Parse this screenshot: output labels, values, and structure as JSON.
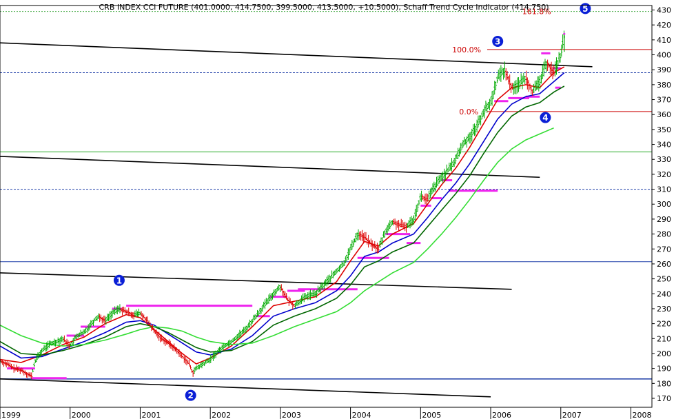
{
  "chart_data": {
    "type": "line",
    "title": "CRB INDEX CCI FUTURE (401.0000, 414.7500, 399.5000, 413.5000, +10.5000), Schaff Trend Cycle Indicator (414.750)",
    "x_tick_labels": [
      "1999",
      "2000",
      "2001",
      "2002",
      "2003",
      "2004",
      "2005",
      "2006",
      "2007",
      "2008"
    ],
    "y_tick_labels": [
      "170",
      "180",
      "190",
      "200",
      "210",
      "220",
      "230",
      "240",
      "250",
      "260",
      "270",
      "280",
      "290",
      "300",
      "310",
      "320",
      "330",
      "340",
      "350",
      "360",
      "370",
      "380",
      "390",
      "400",
      "410",
      "420",
      "430"
    ],
    "ylim": [
      164,
      433
    ],
    "xlim": [
      1999.0,
      2008.3
    ],
    "fib_levels": [
      {
        "label": "161.8%",
        "value": 429
      },
      {
        "label": "100.0%",
        "value": 403.5
      },
      {
        "label": "0.0%",
        "value": 362
      }
    ],
    "markers": [
      "1",
      "2",
      "3",
      "4",
      "5"
    ],
    "series": [
      {
        "type": "ohlc",
        "color": "#00aa00",
        "points": [
          [
            1999.0,
            195
          ],
          [
            1999.1,
            193
          ],
          [
            1999.2,
            190
          ],
          [
            1999.3,
            189
          ],
          [
            1999.4,
            186
          ],
          [
            1999.45,
            185
          ],
          [
            1999.5,
            195
          ],
          [
            1999.6,
            202
          ],
          [
            1999.7,
            206
          ],
          [
            1999.8,
            208
          ],
          [
            1999.9,
            210
          ],
          [
            2000.0,
            205
          ],
          [
            2000.1,
            212
          ],
          [
            2000.2,
            214
          ],
          [
            2000.3,
            220
          ],
          [
            2000.4,
            225
          ],
          [
            2000.5,
            222
          ],
          [
            2000.6,
            227
          ],
          [
            2000.7,
            230
          ],
          [
            2000.8,
            228
          ],
          [
            2000.9,
            226
          ],
          [
            2001.0,
            227
          ],
          [
            2001.1,
            222
          ],
          [
            2001.2,
            215
          ],
          [
            2001.3,
            210
          ],
          [
            2001.4,
            207
          ],
          [
            2001.5,
            203
          ],
          [
            2001.6,
            198
          ],
          [
            2001.7,
            193
          ],
          [
            2001.75,
            187
          ],
          [
            2001.8,
            190
          ],
          [
            2001.9,
            193
          ],
          [
            2002.0,
            196
          ],
          [
            2002.1,
            201
          ],
          [
            2002.2,
            205
          ],
          [
            2002.3,
            208
          ],
          [
            2002.4,
            212
          ],
          [
            2002.5,
            216
          ],
          [
            2002.6,
            222
          ],
          [
            2002.7,
            228
          ],
          [
            2002.8,
            234
          ],
          [
            2002.9,
            240
          ],
          [
            2003.0,
            245
          ],
          [
            2003.1,
            236
          ],
          [
            2003.2,
            232
          ],
          [
            2003.3,
            236
          ],
          [
            2003.4,
            239
          ],
          [
            2003.5,
            240
          ],
          [
            2003.6,
            245
          ],
          [
            2003.7,
            250
          ],
          [
            2003.8,
            255
          ],
          [
            2003.9,
            260
          ],
          [
            2004.0,
            270
          ],
          [
            2004.1,
            280
          ],
          [
            2004.2,
            278
          ],
          [
            2004.3,
            273
          ],
          [
            2004.4,
            270
          ],
          [
            2004.5,
            282
          ],
          [
            2004.6,
            288
          ],
          [
            2004.7,
            286
          ],
          [
            2004.8,
            285
          ],
          [
            2004.9,
            290
          ],
          [
            2005.0,
            305
          ],
          [
            2005.1,
            303
          ],
          [
            2005.2,
            312
          ],
          [
            2005.3,
            318
          ],
          [
            2005.4,
            323
          ],
          [
            2005.5,
            330
          ],
          [
            2005.6,
            340
          ],
          [
            2005.7,
            345
          ],
          [
            2005.8,
            352
          ],
          [
            2005.9,
            362
          ],
          [
            2006.0,
            368
          ],
          [
            2006.1,
            385
          ],
          [
            2006.2,
            390
          ],
          [
            2006.3,
            378
          ],
          [
            2006.4,
            380
          ],
          [
            2006.5,
            385
          ],
          [
            2006.6,
            375
          ],
          [
            2006.7,
            382
          ],
          [
            2006.8,
            395
          ],
          [
            2006.9,
            388
          ],
          [
            2007.0,
            400
          ],
          [
            2007.05,
            414
          ]
        ]
      },
      {
        "type": "line",
        "color": "#dd0000",
        "points": [
          [
            1999.0,
            196
          ],
          [
            1999.3,
            194
          ],
          [
            1999.6,
            199
          ],
          [
            1999.9,
            206
          ],
          [
            2000.2,
            211
          ],
          [
            2000.5,
            220
          ],
          [
            2000.8,
            226
          ],
          [
            2001.0,
            224
          ],
          [
            2001.2,
            216
          ],
          [
            2001.4,
            208
          ],
          [
            2001.6,
            200
          ],
          [
            2001.8,
            193
          ],
          [
            2002.0,
            197
          ],
          [
            2002.3,
            205
          ],
          [
            2002.6,
            218
          ],
          [
            2002.9,
            232
          ],
          [
            2003.2,
            235
          ],
          [
            2003.5,
            238
          ],
          [
            2003.8,
            248
          ],
          [
            2004.0,
            262
          ],
          [
            2004.2,
            275
          ],
          [
            2004.4,
            272
          ],
          [
            2004.6,
            280
          ],
          [
            2004.9,
            287
          ],
          [
            2005.1,
            300
          ],
          [
            2005.3,
            313
          ],
          [
            2005.5,
            324
          ],
          [
            2005.7,
            338
          ],
          [
            2005.9,
            354
          ],
          [
            2006.1,
            370
          ],
          [
            2006.3,
            378
          ],
          [
            2006.5,
            380
          ],
          [
            2006.7,
            378
          ],
          [
            2006.9,
            388
          ],
          [
            2007.05,
            392
          ]
        ]
      },
      {
        "type": "line",
        "color": "#0000cc",
        "points": [
          [
            1999.0,
            205
          ],
          [
            1999.3,
            197
          ],
          [
            1999.6,
            198
          ],
          [
            1999.9,
            203
          ],
          [
            2000.2,
            208
          ],
          [
            2000.5,
            214
          ],
          [
            2000.8,
            221
          ],
          [
            2001.0,
            222
          ],
          [
            2001.2,
            219
          ],
          [
            2001.4,
            213
          ],
          [
            2001.6,
            207
          ],
          [
            2001.8,
            201
          ],
          [
            2002.0,
            199
          ],
          [
            2002.3,
            203
          ],
          [
            2002.6,
            212
          ],
          [
            2002.9,
            225
          ],
          [
            2003.2,
            230
          ],
          [
            2003.5,
            234
          ],
          [
            2003.8,
            242
          ],
          [
            2004.0,
            252
          ],
          [
            2004.2,
            265
          ],
          [
            2004.4,
            268
          ],
          [
            2004.6,
            274
          ],
          [
            2004.9,
            280
          ],
          [
            2005.1,
            291
          ],
          [
            2005.3,
            303
          ],
          [
            2005.5,
            314
          ],
          [
            2005.7,
            327
          ],
          [
            2005.9,
            342
          ],
          [
            2006.1,
            357
          ],
          [
            2006.3,
            367
          ],
          [
            2006.5,
            372
          ],
          [
            2006.7,
            374
          ],
          [
            2006.9,
            382
          ],
          [
            2007.05,
            388
          ]
        ]
      },
      {
        "type": "line",
        "color": "#006600",
        "points": [
          [
            1999.0,
            208
          ],
          [
            1999.3,
            200
          ],
          [
            1999.6,
            199
          ],
          [
            1999.9,
            202
          ],
          [
            2000.2,
            206
          ],
          [
            2000.5,
            211
          ],
          [
            2000.8,
            218
          ],
          [
            2001.0,
            220
          ],
          [
            2001.2,
            218
          ],
          [
            2001.4,
            214
          ],
          [
            2001.6,
            209
          ],
          [
            2001.8,
            204
          ],
          [
            2002.0,
            201
          ],
          [
            2002.3,
            202
          ],
          [
            2002.6,
            208
          ],
          [
            2002.9,
            219
          ],
          [
            2003.2,
            225
          ],
          [
            2003.5,
            230
          ],
          [
            2003.8,
            237
          ],
          [
            2004.0,
            246
          ],
          [
            2004.2,
            258
          ],
          [
            2004.4,
            262
          ],
          [
            2004.6,
            268
          ],
          [
            2004.9,
            274
          ],
          [
            2005.1,
            285
          ],
          [
            2005.3,
            296
          ],
          [
            2005.5,
            307
          ],
          [
            2005.7,
            319
          ],
          [
            2005.9,
            334
          ],
          [
            2006.1,
            348
          ],
          [
            2006.3,
            359
          ],
          [
            2006.5,
            365
          ],
          [
            2006.7,
            368
          ],
          [
            2006.9,
            375
          ],
          [
            2007.05,
            379
          ]
        ]
      },
      {
        "type": "line",
        "color": "#33dd33",
        "points": [
          [
            1999.0,
            219
          ],
          [
            1999.3,
            212
          ],
          [
            1999.6,
            207
          ],
          [
            1999.9,
            205
          ],
          [
            2000.2,
            206
          ],
          [
            2000.5,
            209
          ],
          [
            2000.8,
            213
          ],
          [
            2001.0,
            216
          ],
          [
            2001.2,
            218
          ],
          [
            2001.4,
            217
          ],
          [
            2001.6,
            215
          ],
          [
            2001.8,
            211
          ],
          [
            2002.0,
            208
          ],
          [
            2002.3,
            206
          ],
          [
            2002.6,
            207
          ],
          [
            2002.9,
            212
          ],
          [
            2003.2,
            218
          ],
          [
            2003.5,
            223
          ],
          [
            2003.8,
            228
          ],
          [
            2004.0,
            234
          ],
          [
            2004.2,
            242
          ],
          [
            2004.4,
            248
          ],
          [
            2004.6,
            254
          ],
          [
            2004.9,
            261
          ],
          [
            2005.1,
            270
          ],
          [
            2005.3,
            280
          ],
          [
            2005.5,
            291
          ],
          [
            2005.7,
            303
          ],
          [
            2005.9,
            316
          ],
          [
            2006.1,
            328
          ],
          [
            2006.3,
            337
          ],
          [
            2006.5,
            343
          ],
          [
            2006.7,
            347
          ],
          [
            2006.9,
            351
          ]
        ]
      }
    ]
  }
}
